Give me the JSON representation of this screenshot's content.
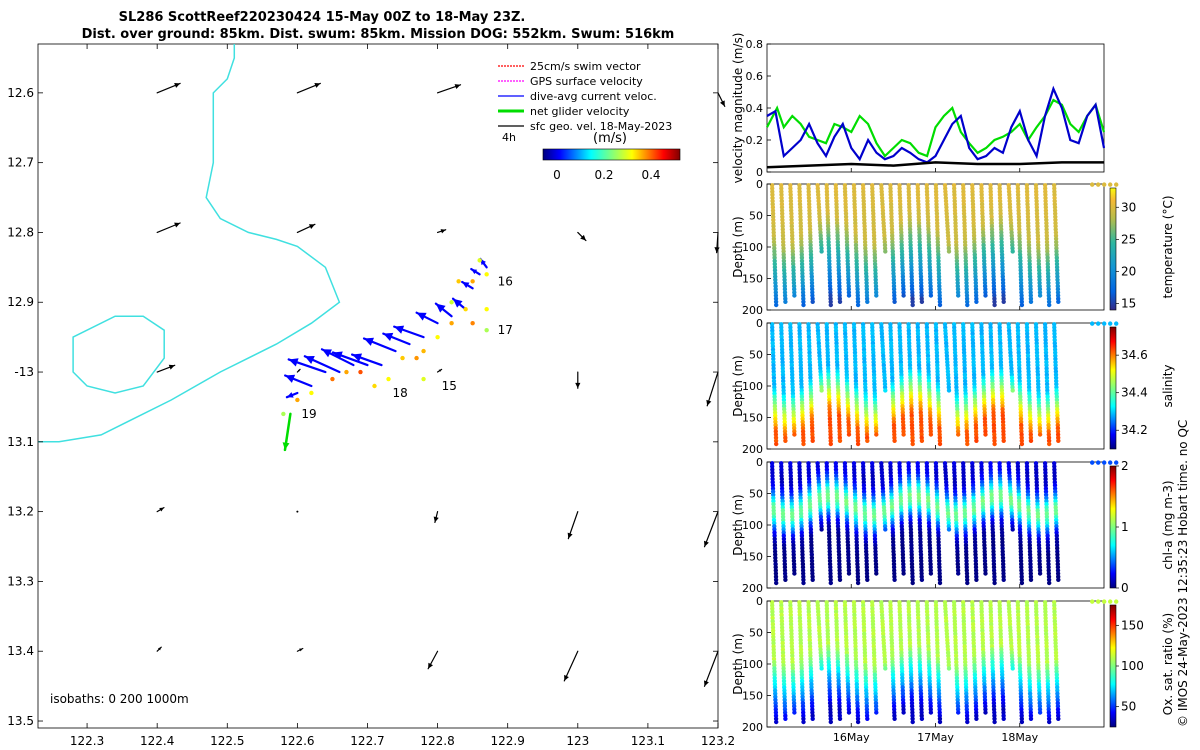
{
  "chart_data": [
    {
      "type": "map",
      "title_line1": "SL286 ScottReef220230424 15-May 00Z to 18-May 23Z.",
      "title_line2": "Dist. over ground: 85km. Dist. swum: 85km. Mission DOG: 552km. Swum: 516km",
      "xlim": [
        122.23,
        123.2
      ],
      "ylim": [
        -13.51,
        -12.53
      ],
      "xticks": [
        122.3,
        122.4,
        122.5,
        122.6,
        122.7,
        122.8,
        122.9,
        123,
        123.1,
        123.2
      ],
      "xtick_labels": [
        "122.3",
        "122.4",
        "122.5",
        "122.6",
        "122.7",
        "122.8",
        "122.9",
        "123",
        "123.1",
        "123.2"
      ],
      "yticks": [
        -12.6,
        -12.7,
        -12.8,
        -12.9,
        -13,
        -13.1,
        -13.2,
        -13.3,
        -13.4,
        -13.5
      ],
      "ytick_labels": [
        "12.6",
        "12.7",
        "12.8",
        "12.9",
        "-13",
        "13.1",
        "13.2",
        "13.3",
        "13.4",
        "13.5"
      ],
      "legend": {
        "placement": "top-right",
        "entries": [
          {
            "label": "25cm/s swim vector",
            "color": "#ff0000",
            "style": "dotted"
          },
          {
            "label": "GPS surface velocity",
            "color": "#ff00ff",
            "style": "dotted"
          },
          {
            "label": "dive-avg current veloc.",
            "color": "#0000ff",
            "style": "solid"
          },
          {
            "label": "net glider velocity",
            "color": "#00dd00",
            "style": "thick"
          },
          {
            "label": "sfc geo. vel. 18-May-2023",
            "color": "#000000",
            "style": "solid"
          }
        ],
        "interval_label": "4h",
        "unit_label": "(m/s)"
      },
      "colorbar": {
        "ticks": [
          0,
          0.2,
          0.4
        ],
        "tick_labels": [
          "0",
          "0.2",
          "0.4"
        ],
        "range": [
          -0.07,
          0.52
        ]
      },
      "isobath_text": "isobaths: 0   200  1000m",
      "isobath_color": "#40e0e0",
      "coast_line": [
        [
          122.23,
          -13.1
        ],
        [
          122.26,
          -13.1
        ],
        [
          122.32,
          -13.09
        ],
        [
          122.42,
          -13.04
        ],
        [
          122.49,
          -13.0
        ],
        [
          122.57,
          -12.96
        ],
        [
          122.62,
          -12.93
        ],
        [
          122.66,
          -12.9
        ],
        [
          122.64,
          -12.85
        ],
        [
          122.6,
          -12.82
        ],
        [
          122.57,
          -12.81
        ],
        [
          122.53,
          -12.8
        ],
        [
          122.49,
          -12.78
        ],
        [
          122.47,
          -12.75
        ],
        [
          122.48,
          -12.7
        ],
        [
          122.48,
          -12.64
        ],
        [
          122.48,
          -12.6
        ],
        [
          122.5,
          -12.58
        ],
        [
          122.51,
          -12.55
        ],
        [
          122.51,
          -12.53
        ]
      ],
      "coast_line2": [
        [
          122.28,
          -12.95
        ],
        [
          122.34,
          -12.92
        ],
        [
          122.38,
          -12.92
        ],
        [
          122.41,
          -12.94
        ],
        [
          122.41,
          -12.98
        ],
        [
          122.38,
          -13.02
        ],
        [
          122.34,
          -13.03
        ],
        [
          122.3,
          -13.02
        ],
        [
          122.28,
          -13.0
        ],
        [
          122.28,
          -12.97
        ]
      ],
      "geo_vectors": [
        {
          "lon": 122.4,
          "lat": -12.6,
          "u": 0.17,
          "v": 0.07
        },
        {
          "lon": 122.6,
          "lat": -12.6,
          "u": 0.17,
          "v": 0.07
        },
        {
          "lon": 122.8,
          "lat": -12.6,
          "u": 0.17,
          "v": 0.06
        },
        {
          "lon": 123.2,
          "lat": -12.6,
          "u": 0.05,
          "v": -0.1
        },
        {
          "lon": 122.4,
          "lat": -12.8,
          "u": 0.17,
          "v": 0.07
        },
        {
          "lon": 122.6,
          "lat": -12.8,
          "u": 0.13,
          "v": 0.06
        },
        {
          "lon": 122.8,
          "lat": -12.8,
          "u": 0.06,
          "v": 0.02
        },
        {
          "lon": 123.0,
          "lat": -12.8,
          "u": 0.06,
          "v": -0.06
        },
        {
          "lon": 123.2,
          "lat": -12.8,
          "u": -0.01,
          "v": -0.15
        },
        {
          "lon": 122.4,
          "lat": -13.0,
          "u": 0.13,
          "v": 0.05
        },
        {
          "lon": 122.6,
          "lat": -13.0,
          "u": 0.02,
          "v": 0.02
        },
        {
          "lon": 122.8,
          "lat": -13.0,
          "u": 0.03,
          "v": 0.02
        },
        {
          "lon": 123.0,
          "lat": -13.0,
          "u": 0.0,
          "v": -0.12
        },
        {
          "lon": 123.2,
          "lat": -13.0,
          "u": -0.08,
          "v": -0.25
        },
        {
          "lon": 122.4,
          "lat": -13.2,
          "u": 0.05,
          "v": 0.03
        },
        {
          "lon": 122.6,
          "lat": -13.2,
          "u": 0.0,
          "v": 0.0
        },
        {
          "lon": 122.8,
          "lat": -13.2,
          "u": -0.02,
          "v": -0.08
        },
        {
          "lon": 123.0,
          "lat": -13.2,
          "u": -0.07,
          "v": -0.2
        },
        {
          "lon": 123.2,
          "lat": -13.2,
          "u": -0.1,
          "v": -0.26
        },
        {
          "lon": 122.4,
          "lat": -13.4,
          "u": 0.03,
          "v": 0.03
        },
        {
          "lon": 122.6,
          "lat": -13.4,
          "u": 0.04,
          "v": 0.02
        },
        {
          "lon": 122.8,
          "lat": -13.4,
          "u": -0.07,
          "v": -0.13
        },
        {
          "lon": 123.0,
          "lat": -13.4,
          "u": -0.1,
          "v": -0.22
        },
        {
          "lon": 123.2,
          "lat": -13.4,
          "u": -0.1,
          "v": -0.26
        }
      ],
      "track": [
        [
          122.58,
          -13.06
        ],
        [
          122.6,
          -13.04
        ],
        [
          122.62,
          -13.03
        ],
        [
          122.65,
          -13.01
        ],
        [
          122.67,
          -13.0
        ],
        [
          122.69,
          -13.0
        ],
        [
          122.71,
          -13.02
        ],
        [
          122.73,
          -13.01
        ],
        [
          122.75,
          -12.98
        ],
        [
          122.77,
          -12.98
        ],
        [
          122.78,
          -13.01
        ],
        [
          122.78,
          -12.97
        ],
        [
          122.8,
          -12.95
        ],
        [
          122.82,
          -12.93
        ],
        [
          122.85,
          -12.93
        ],
        [
          122.87,
          -12.94
        ],
        [
          122.87,
          -12.91
        ],
        [
          122.84,
          -12.91
        ],
        [
          122.82,
          -12.9
        ],
        [
          122.83,
          -12.87
        ],
        [
          122.85,
          -12.87
        ],
        [
          122.87,
          -12.86
        ],
        [
          122.86,
          -12.84
        ]
      ],
      "track_colors": [
        0.25,
        0.35,
        0.3,
        0.38,
        0.35,
        0.4,
        0.32,
        0.3,
        0.33,
        0.36,
        0.28,
        0.34,
        0.3,
        0.35,
        0.37,
        0.25,
        0.3,
        0.32,
        0.27,
        0.33,
        0.35,
        0.3,
        0.28
      ],
      "current_vectors": [
        {
          "lon": 122.6,
          "lat": -13.03,
          "u": -0.1,
          "v": -0.04
        },
        {
          "lon": 122.62,
          "lat": -13.02,
          "u": -0.25,
          "v": 0.1
        },
        {
          "lon": 122.64,
          "lat": -13.0,
          "u": -0.35,
          "v": 0.12
        },
        {
          "lon": 122.66,
          "lat": -13.0,
          "u": -0.33,
          "v": 0.15
        },
        {
          "lon": 122.68,
          "lat": -12.99,
          "u": -0.3,
          "v": 0.15
        },
        {
          "lon": 122.7,
          "lat": -12.99,
          "u": -0.33,
          "v": 0.12
        },
        {
          "lon": 122.72,
          "lat": -12.99,
          "u": -0.28,
          "v": 0.1
        },
        {
          "lon": 122.74,
          "lat": -12.97,
          "u": -0.3,
          "v": 0.12
        },
        {
          "lon": 122.76,
          "lat": -12.96,
          "u": -0.25,
          "v": 0.1
        },
        {
          "lon": 122.78,
          "lat": -12.95,
          "u": -0.28,
          "v": 0.1
        },
        {
          "lon": 122.8,
          "lat": -12.93,
          "u": -0.2,
          "v": 0.1
        },
        {
          "lon": 122.82,
          "lat": -12.92,
          "u": -0.15,
          "v": 0.12
        },
        {
          "lon": 122.84,
          "lat": -12.91,
          "u": -0.12,
          "v": 0.1
        },
        {
          "lon": 122.85,
          "lat": -12.88,
          "u": -0.1,
          "v": 0.06
        },
        {
          "lon": 122.86,
          "lat": -12.86,
          "u": -0.08,
          "v": 0.05
        },
        {
          "lon": 122.87,
          "lat": -12.85,
          "u": -0.06,
          "v": 0.08
        }
      ],
      "net_vector": {
        "lon": 122.59,
        "lat": -13.06,
        "u": -0.03,
        "v": -0.2
      },
      "day_labels": [
        {
          "text": "15",
          "lon": 122.8,
          "lat": -13.02
        },
        {
          "text": "16",
          "lon": 122.88,
          "lat": -12.87
        },
        {
          "text": "17",
          "lon": 122.88,
          "lat": -12.94
        },
        {
          "text": "18",
          "lon": 122.73,
          "lat": -13.03
        },
        {
          "text": "19",
          "lon": 122.6,
          "lat": -13.06
        }
      ]
    },
    {
      "type": "line",
      "ylabel": "velocity magnitude (m/s)",
      "ylim": [
        0,
        0.8
      ],
      "yticks": [
        0,
        0.2,
        0.4,
        0.6,
        0.8
      ],
      "ytick_labels": [
        "0",
        "0.2",
        "0.4",
        "0.6",
        "0.8"
      ],
      "xlim": [
        15,
        19
      ],
      "series": [
        {
          "color": "#00dd00",
          "x": [
            15.0,
            15.12,
            15.2,
            15.3,
            15.4,
            15.5,
            15.6,
            15.7,
            15.8,
            15.9,
            16.0,
            16.1,
            16.2,
            16.3,
            16.4,
            16.5,
            16.6,
            16.7,
            16.8,
            16.9,
            17.0,
            17.1,
            17.2,
            17.3,
            17.4,
            17.5,
            17.6,
            17.7,
            17.8,
            17.9,
            18.0,
            18.1,
            18.2,
            18.3,
            18.4,
            18.5,
            18.6,
            18.7,
            18.8,
            18.9,
            19.0
          ],
          "y": [
            0.28,
            0.4,
            0.28,
            0.35,
            0.3,
            0.22,
            0.2,
            0.18,
            0.3,
            0.28,
            0.25,
            0.35,
            0.3,
            0.18,
            0.1,
            0.15,
            0.2,
            0.18,
            0.12,
            0.1,
            0.28,
            0.35,
            0.4,
            0.25,
            0.18,
            0.12,
            0.15,
            0.2,
            0.22,
            0.25,
            0.3,
            0.2,
            0.28,
            0.35,
            0.45,
            0.42,
            0.3,
            0.25,
            0.35,
            0.42,
            0.25
          ]
        },
        {
          "color": "#0000cc",
          "x": [
            15.0,
            15.1,
            15.2,
            15.3,
            15.4,
            15.5,
            15.6,
            15.7,
            15.8,
            15.9,
            16.0,
            16.1,
            16.2,
            16.3,
            16.4,
            16.5,
            16.6,
            16.7,
            16.8,
            16.9,
            17.0,
            17.1,
            17.2,
            17.3,
            17.4,
            17.5,
            17.6,
            17.7,
            17.8,
            17.9,
            18.0,
            18.1,
            18.2,
            18.3,
            18.4,
            18.5,
            18.6,
            18.7,
            18.8,
            18.9,
            19.0
          ],
          "y": [
            0.35,
            0.38,
            0.1,
            0.15,
            0.2,
            0.3,
            0.18,
            0.1,
            0.22,
            0.3,
            0.15,
            0.08,
            0.2,
            0.12,
            0.08,
            0.1,
            0.15,
            0.12,
            0.08,
            0.06,
            0.1,
            0.2,
            0.3,
            0.35,
            0.15,
            0.08,
            0.1,
            0.15,
            0.12,
            0.28,
            0.38,
            0.2,
            0.1,
            0.35,
            0.52,
            0.4,
            0.2,
            0.18,
            0.35,
            0.42,
            0.15
          ]
        },
        {
          "color": "#000000",
          "x": [
            15.0,
            15.5,
            16.0,
            16.5,
            17.0,
            17.5,
            18.0,
            18.5,
            19.0
          ],
          "y": [
            0.03,
            0.04,
            0.05,
            0.04,
            0.06,
            0.05,
            0.05,
            0.06,
            0.06
          ]
        }
      ]
    },
    {
      "type": "scatter",
      "ylabel": "Depth (m)",
      "ylim": [
        200,
        0
      ],
      "yticks": [
        0,
        50,
        100,
        150,
        200
      ],
      "ytick_labels": [
        "0",
        "50",
        "100",
        "150",
        "200"
      ],
      "colorbar_label": "temperature (°C)",
      "colorbar_ticks": [
        15,
        20,
        25,
        30
      ],
      "colorbar_tick_labels": [
        "15",
        "20",
        "25",
        "30"
      ],
      "crange": [
        14,
        33
      ],
      "profile_max_depth": 195
    },
    {
      "type": "scatter",
      "ylabel": "Depth (m)",
      "ylim": [
        200,
        0
      ],
      "yticks": [
        0,
        50,
        100,
        150,
        200
      ],
      "ytick_labels": [
        "0",
        "50",
        "100",
        "150",
        "200"
      ],
      "colorbar_label": "salinity",
      "colorbar_ticks": [
        34.2,
        34.4,
        34.6
      ],
      "colorbar_tick_labels": [
        "34.2",
        "34.4",
        "34.6"
      ],
      "crange": [
        34.1,
        34.75
      ],
      "profile_max_depth": 195
    },
    {
      "type": "scatter",
      "ylabel": "Depth (m)",
      "ylim": [
        200,
        0
      ],
      "yticks": [
        0,
        50,
        100,
        150,
        200
      ],
      "ytick_labels": [
        "0",
        "50",
        "100",
        "150",
        "200"
      ],
      "colorbar_label": "chl-a (mg m-3)",
      "colorbar_ticks": [
        0,
        1,
        2
      ],
      "colorbar_tick_labels": [
        "0",
        "1",
        "2"
      ],
      "crange": [
        0,
        2
      ],
      "profile_max_depth": 195
    },
    {
      "type": "scatter",
      "ylabel": "Depth (m)",
      "ylim": [
        200,
        0
      ],
      "yticks": [
        0,
        50,
        100,
        150,
        200
      ],
      "ytick_labels": [
        "0",
        "50",
        "100",
        "150",
        "200"
      ],
      "colorbar_label": "Ox. sat. ratio (%)",
      "colorbar_ticks": [
        50,
        100,
        150
      ],
      "colorbar_tick_labels": [
        "50",
        "100",
        "150"
      ],
      "crange": [
        25,
        175
      ],
      "profile_max_depth": 195,
      "xticks": [
        16,
        17,
        18
      ],
      "xtick_labels": [
        "16May",
        "17May",
        "18May"
      ]
    }
  ],
  "footer": {
    "stamp": "© IMOS 24-May-2023 12:35:23 Hobart time. no QC"
  }
}
